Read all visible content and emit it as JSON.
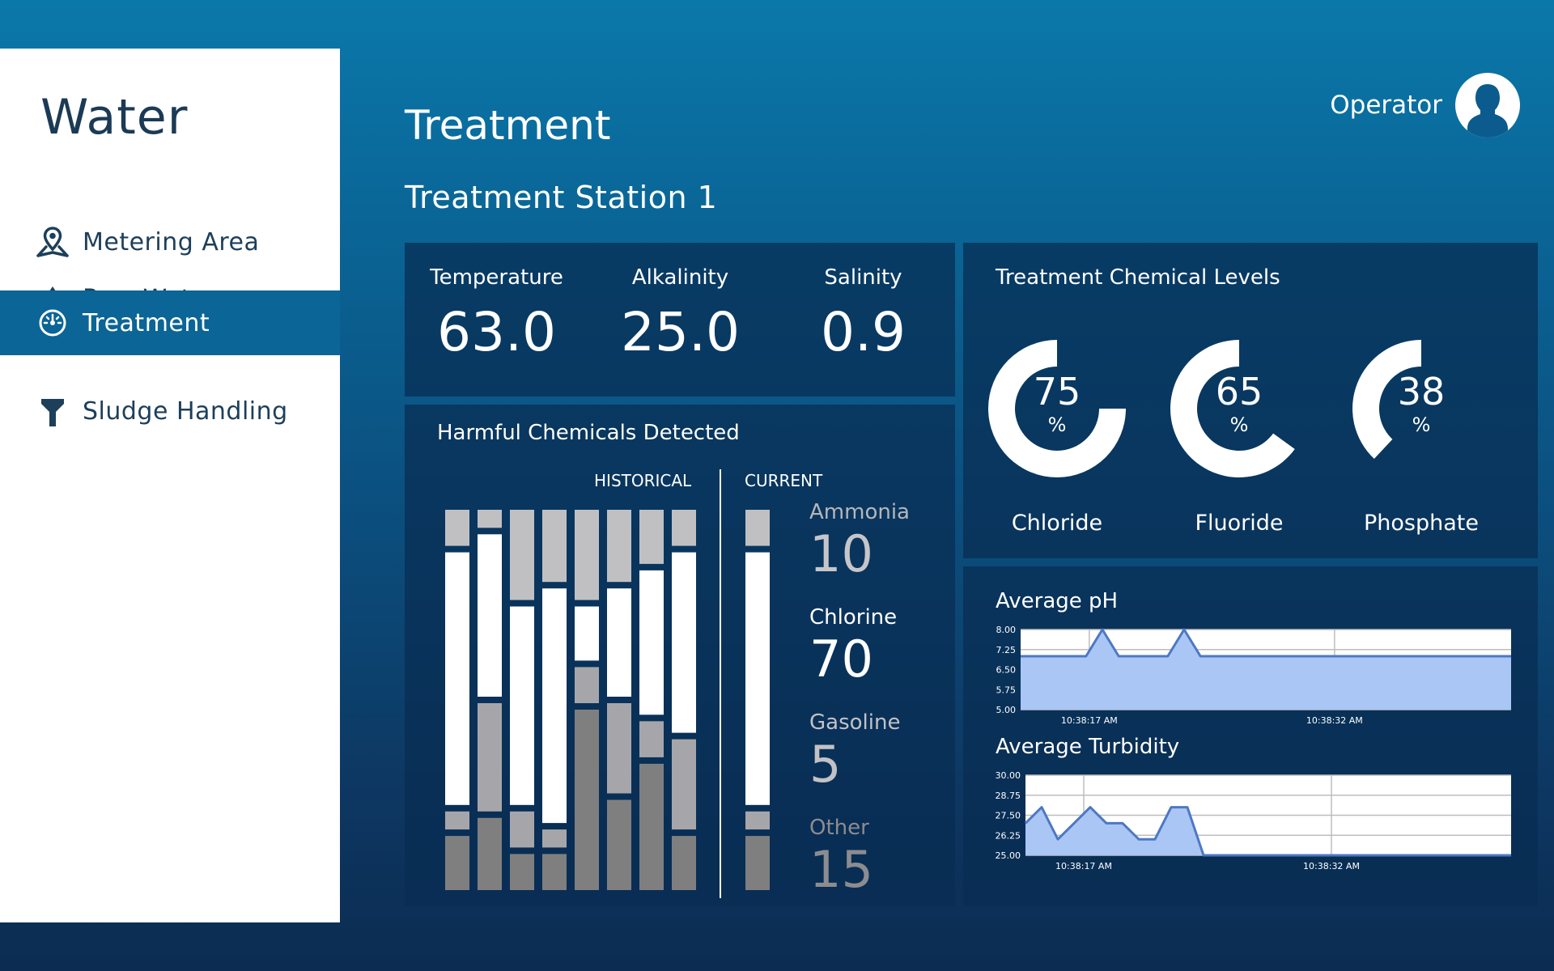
{
  "app": {
    "title": "Water"
  },
  "sidebar": {
    "items": [
      {
        "label": "Metering Area",
        "icon": "map-pin-icon",
        "active": false
      },
      {
        "label": "Raw Water",
        "icon": "water-drop-icon",
        "active": false
      },
      {
        "label": "Treatment",
        "icon": "gauge-icon",
        "active": true
      },
      {
        "label": "Sludge Handling",
        "icon": "funnel-icon",
        "active": false
      }
    ]
  },
  "header": {
    "page_title": "Treatment",
    "station": "Treatment Station 1",
    "user": "Operator"
  },
  "stats": [
    {
      "label": "Temperature",
      "value": "63.0"
    },
    {
      "label": "Alkalinity",
      "value": "25.0"
    },
    {
      "label": "Salinity",
      "value": "0.9"
    }
  ],
  "harmful": {
    "title": "Harmful Chemicals Detected",
    "historical_label": "HISTORICAL",
    "current_label": "CURRENT",
    "segment_colors": {
      "ammonia": "#c0c0c3",
      "chlorine": "#ffffff",
      "gasoline": "#a6a6aa",
      "other": "#7f7f80"
    },
    "historical": [
      {
        "ammonia": 10,
        "chlorine": 70,
        "gasoline": 5,
        "other": 15
      },
      {
        "ammonia": 5,
        "chlorine": 45,
        "gasoline": 30,
        "other": 20
      },
      {
        "ammonia": 25,
        "chlorine": 55,
        "gasoline": 10,
        "other": 10
      },
      {
        "ammonia": 20,
        "chlorine": 65,
        "gasoline": 5,
        "other": 10
      },
      {
        "ammonia": 25,
        "chlorine": 15,
        "gasoline": 10,
        "other": 50
      },
      {
        "ammonia": 20,
        "chlorine": 30,
        "gasoline": 25,
        "other": 25
      },
      {
        "ammonia": 15,
        "chlorine": 40,
        "gasoline": 10,
        "other": 35
      },
      {
        "ammonia": 10,
        "chlorine": 50,
        "gasoline": 25,
        "other": 15
      }
    ],
    "current": [
      {
        "name": "Ammonia",
        "value": 10
      },
      {
        "name": "Chlorine",
        "value": 70
      },
      {
        "name": "Gasoline",
        "value": 5
      },
      {
        "name": "Other",
        "value": 15
      }
    ]
  },
  "levels": {
    "title": "Treatment Chemical Levels",
    "unit": "%",
    "items": [
      {
        "label": "Chloride",
        "value": 75
      },
      {
        "label": "Fluoride",
        "value": 65
      },
      {
        "label": "Phosphate",
        "value": 38
      }
    ]
  },
  "chart_data": [
    {
      "type": "area",
      "title": "Average pH",
      "ylim": [
        5.0,
        8.0
      ],
      "yticks": [
        "8.00",
        "7.25",
        "6.50",
        "5.75",
        "5.00"
      ],
      "xticks": [
        "10:38:17 AM",
        "10:38:32 AM"
      ],
      "values": [
        7.0,
        7.0,
        7.0,
        7.0,
        7.0,
        8.0,
        7.0,
        7.0,
        7.0,
        7.0,
        8.0,
        7.0,
        7.0,
        7.0,
        7.0,
        7.0,
        7.0,
        7.0,
        7.0,
        7.0,
        7.0,
        7.0,
        7.0,
        7.0,
        7.0,
        7.0,
        7.0,
        7.0,
        7.0,
        7.0,
        7.0
      ]
    },
    {
      "type": "area",
      "title": "Average Turbidity",
      "ylim": [
        25.0,
        30.0
      ],
      "yticks": [
        "30.00",
        "28.75",
        "27.50",
        "26.25",
        "25.00"
      ],
      "xticks": [
        "10:38:17 AM",
        "10:38:32 AM"
      ],
      "values": [
        27.0,
        28.0,
        26.0,
        27.0,
        28.0,
        27.0,
        27.0,
        26.0,
        26.0,
        28.0,
        28.0,
        25.0,
        25.0,
        25.0,
        25.0,
        25.0,
        25.0,
        25.0,
        25.0,
        25.0,
        25.0,
        25.0,
        25.0,
        25.0,
        25.0,
        25.0,
        25.0,
        25.0,
        25.0,
        25.0,
        25.0
      ]
    }
  ]
}
